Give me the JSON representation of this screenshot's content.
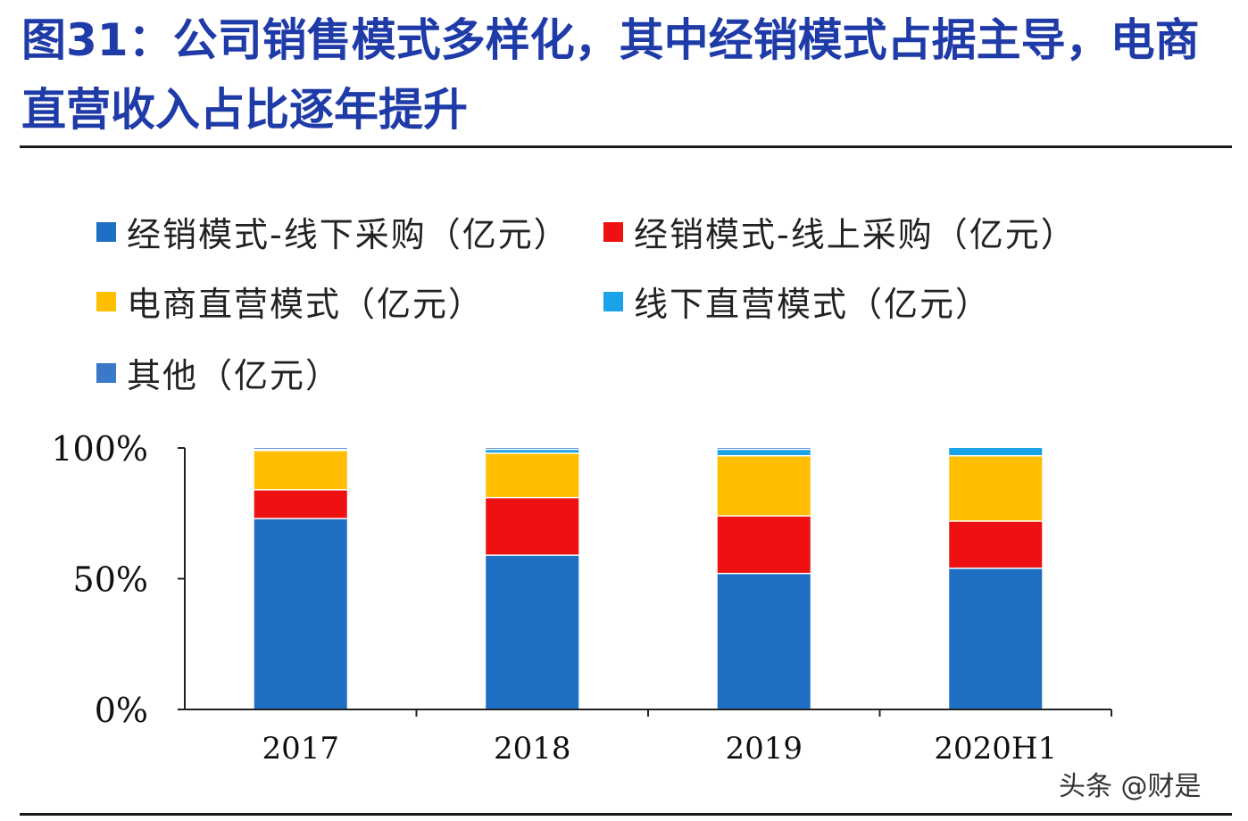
{
  "title": "图31：公司销售模式多样化，其中经销模式占据主导，电商直营收入占比逐年提升",
  "watermark": "头条 @财是",
  "chart_data": {
    "type": "bar",
    "stacked": true,
    "normalized": true,
    "categories": [
      "2017",
      "2018",
      "2019",
      "2020H1"
    ],
    "yticks": [
      "0%",
      "50%",
      "100%"
    ],
    "ylim": [
      0,
      100
    ],
    "series": [
      {
        "name": "经销模式-线下采购（亿元）",
        "color": "#1f6fc5",
        "values": [
          73,
          59,
          52,
          54
        ]
      },
      {
        "name": "经销模式-线上采购（亿元）",
        "color": "#ee1111",
        "values": [
          11,
          22,
          22,
          18
        ]
      },
      {
        "name": "电商直营模式（亿元）",
        "color": "#ffbf00",
        "values": [
          15,
          17,
          23,
          25
        ]
      },
      {
        "name": "线下直营模式（亿元）",
        "color": "#1aa3e8",
        "values": [
          0.5,
          1.5,
          2.5,
          3
        ]
      },
      {
        "name": "其他（亿元）",
        "color": "#3a78c9",
        "values": [
          0.5,
          0.5,
          0.5,
          0
        ]
      }
    ]
  }
}
